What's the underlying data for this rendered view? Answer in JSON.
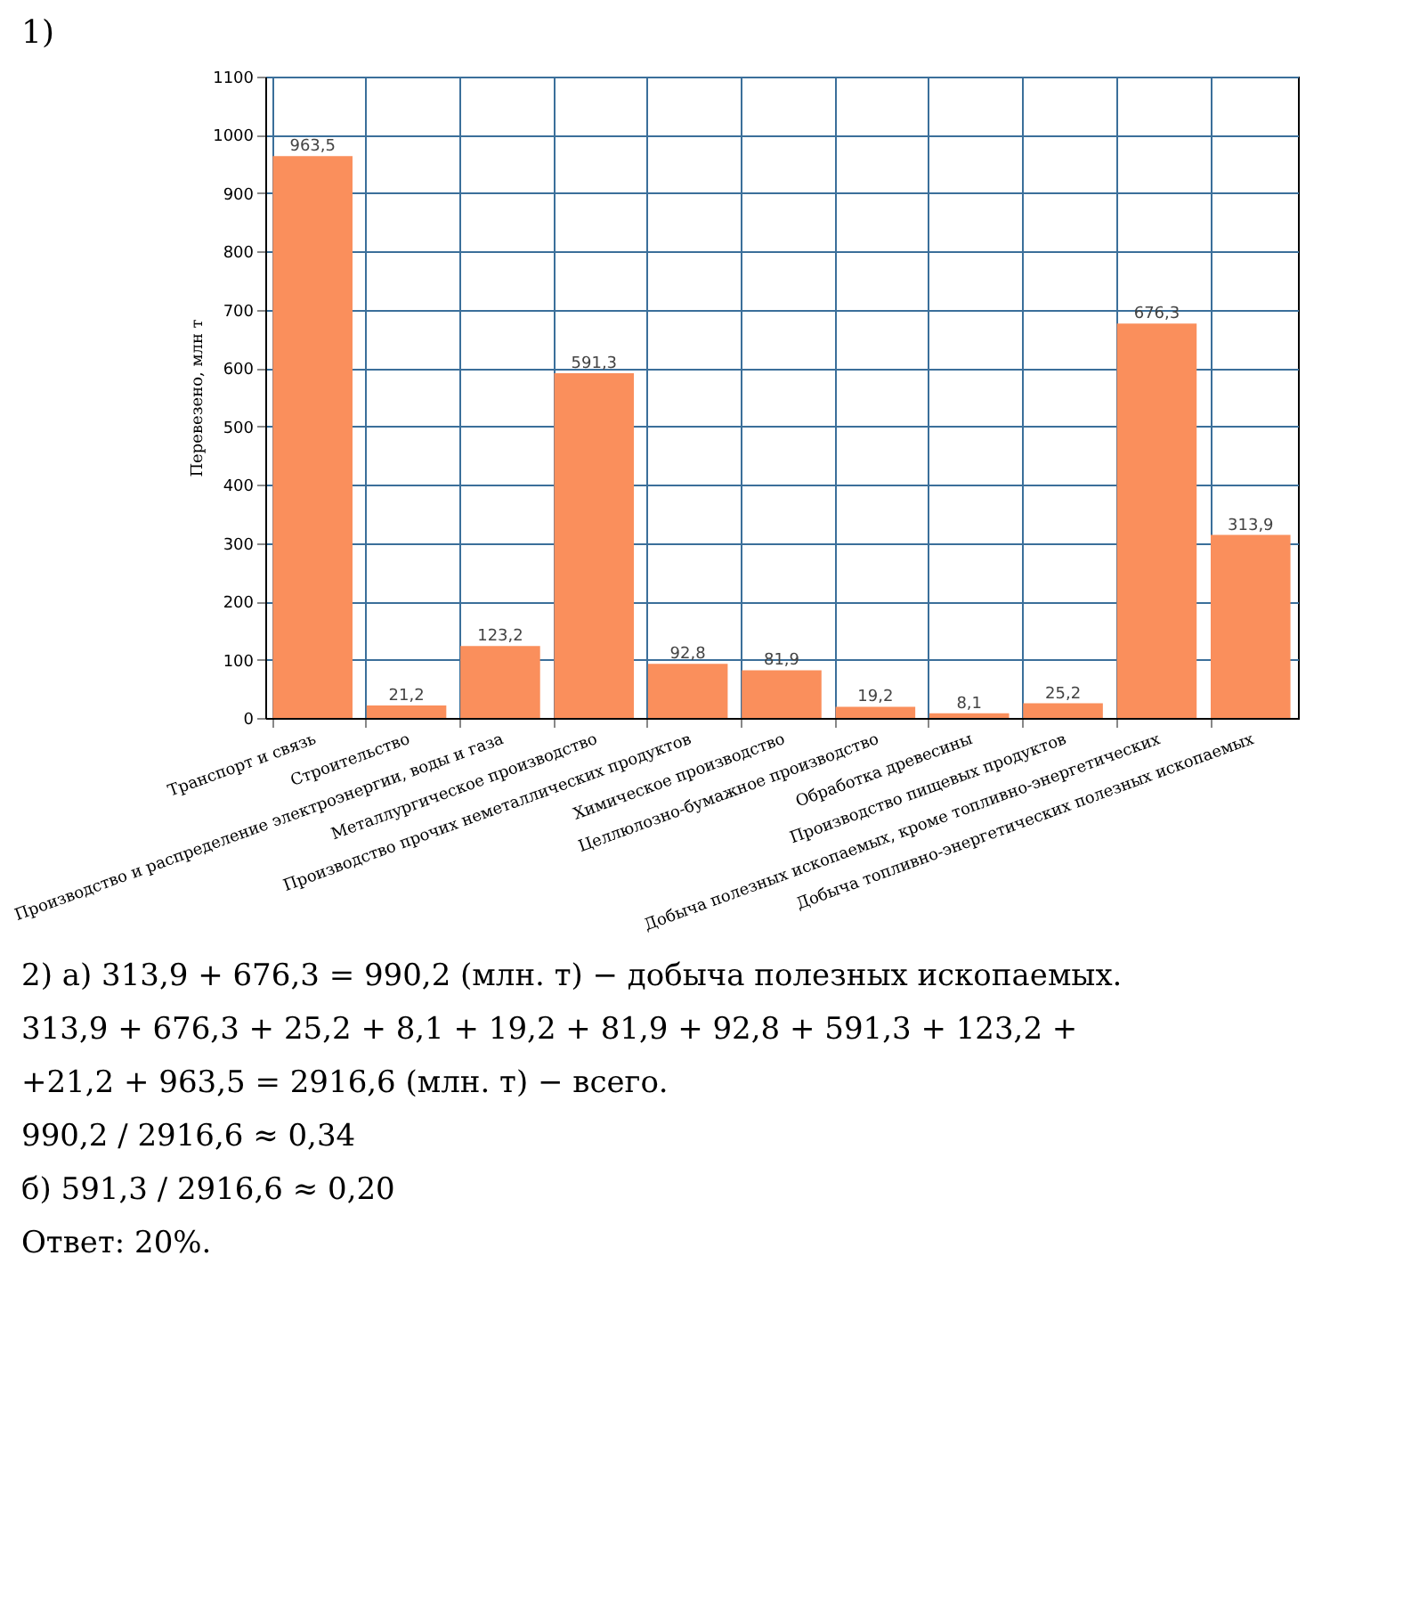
{
  "chart_data": {
    "type": "bar",
    "ylabel": "Перевезено, млн т",
    "categories": [
      "Транспорт и связь",
      "Строительство",
      "Производство и распределение электроэнергии, воды и газа",
      "Металлургическое производство",
      "Производство прочих неметаллических продуктов",
      "Химическое производство",
      "Целлюлозно-бумажное производство",
      "Обработка древесины",
      "Производство пищевых продуктов",
      "Добыча полезных ископаемых, кроме топливно-энергетических",
      "Добыча топливно-энергетических полезных ископаемых"
    ],
    "values": [
      963.5,
      21.2,
      123.2,
      591.3,
      92.8,
      81.9,
      19.2,
      8.1,
      25.2,
      676.3,
      313.9
    ],
    "value_labels": [
      "963,5",
      "21,2",
      "123,2",
      "591,3",
      "92,8",
      "81,9",
      "19,2",
      "8,1",
      "25,2",
      "676,3",
      "313,9"
    ],
    "color": "#fa8f5c",
    "ylim": [
      0,
      1100
    ],
    "yticks": [
      0,
      100,
      200,
      300,
      400,
      500,
      600,
      700,
      800,
      900,
      1000,
      1100
    ],
    "grid": true,
    "annotations": [
      "1)",
      "2) а) 313,9 + 676,3 = 990,2 (млн. т) − добыча полезных ископаемых.",
      "313,9 + 676,3 + 25,2 + 8,1 + 19,2 + 81,9 + 92,8 + 591,3 + 123,2 +",
      "+21,2 + 963,5 = 2916,6 (млн. т) − всего.",
      "990,2 / 2916,6 ≈ 0,34",
      "б) 591,3 / 2916,6 ≈ 0,20",
      "Ответ: 20%."
    ]
  }
}
